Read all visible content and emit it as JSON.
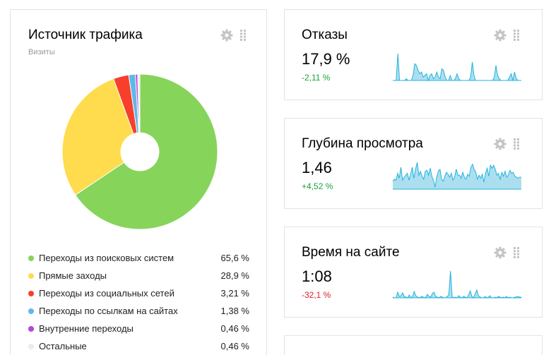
{
  "traffic": {
    "title": "Источник трафика",
    "subtitle": "Визиты",
    "chart_data": {
      "type": "pie",
      "categories": [
        "Переходы из поисковых систем",
        "Прямые заходы",
        "Переходы из социальных сетей",
        "Переходы по ссылкам на сайтах",
        "Внутренние переходы",
        "Остальные"
      ],
      "values": [
        65.6,
        28.9,
        3.21,
        1.38,
        0.46,
        0.46
      ],
      "colors": [
        "#86d45a",
        "#ffdc4d",
        "#f73f2b",
        "#5fb8e8",
        "#b545d4",
        "#ececec"
      ]
    },
    "legend": [
      {
        "label": "Переходы из поисковых систем",
        "value": "65,6 %",
        "color": "#86d45a"
      },
      {
        "label": "Прямые заходы",
        "value": "28,9 %",
        "color": "#ffdc4d"
      },
      {
        "label": "Переходы из социальных сетей",
        "value": "3,21 %",
        "color": "#f73f2b"
      },
      {
        "label": "Переходы по ссылкам на сайтах",
        "value": "1,38 %",
        "color": "#5fb8e8"
      },
      {
        "label": "Внутренние переходы",
        "value": "0,46 %",
        "color": "#b545d4"
      },
      {
        "label": "Остальные",
        "value": "0,46 %",
        "color": "#ececec"
      }
    ]
  },
  "metrics": [
    {
      "title": "Отказы",
      "value": "17,9 %",
      "delta": "-2,11 %",
      "delta_color": "#1aa33a",
      "spark": [
        0,
        0,
        0,
        16,
        0,
        0,
        0,
        0,
        1,
        0,
        0,
        0,
        3,
        10,
        9,
        6,
        4,
        5,
        2,
        3,
        4,
        0,
        3,
        4,
        1,
        2,
        5,
        2,
        1,
        7,
        6,
        2,
        0,
        0,
        3,
        0,
        0,
        1,
        4,
        1,
        0,
        0,
        0,
        0,
        0,
        0,
        2,
        11,
        3,
        0,
        0,
        0,
        0,
        0,
        0,
        0,
        0,
        0,
        0,
        0,
        2,
        9,
        3,
        1,
        0,
        0,
        0,
        0,
        0,
        2,
        4,
        0,
        5,
        1,
        0,
        0,
        0
      ]
    },
    {
      "title": "Глубина просмотра",
      "value": "1,46",
      "delta": "+4,52 %",
      "delta_color": "#1aa33a",
      "spark": [
        8,
        10,
        9,
        16,
        11,
        22,
        9,
        12,
        14,
        16,
        9,
        15,
        22,
        11,
        20,
        27,
        14,
        18,
        13,
        10,
        18,
        19,
        14,
        21,
        13,
        9,
        2,
        12,
        18,
        20,
        10,
        8,
        13,
        17,
        15,
        12,
        16,
        9,
        12,
        20,
        14,
        14,
        11,
        17,
        12,
        10,
        15,
        13,
        22,
        25,
        20,
        17,
        10,
        14,
        11,
        15,
        7,
        16,
        21,
        13,
        24,
        21,
        24,
        20,
        14,
        16,
        10,
        17,
        13,
        18,
        12,
        14,
        19,
        16,
        17,
        13,
        12,
        11,
        12,
        12
      ]
    },
    {
      "title": "Время на сайте",
      "value": "1:08",
      "delta": "-32,1 %",
      "delta_color": "#e02020",
      "spark": [
        1,
        0,
        0,
        8,
        2,
        3,
        7,
        2,
        1,
        0,
        4,
        0,
        2,
        9,
        3,
        1,
        0,
        1,
        2,
        0,
        1,
        5,
        2,
        1,
        6,
        8,
        2,
        1,
        0,
        2,
        1,
        0,
        0,
        2,
        4,
        38,
        2,
        0,
        1,
        0,
        3,
        1,
        0,
        2,
        1,
        0,
        4,
        10,
        2,
        0,
        6,
        11,
        3,
        1,
        0,
        0,
        2,
        0,
        1,
        3,
        0,
        0,
        1,
        0,
        2,
        1,
        0,
        1,
        0,
        2,
        0,
        1,
        0,
        0,
        1,
        1,
        2,
        1,
        1
      ]
    }
  ],
  "colors": {
    "spark_stroke": "#23b3dc",
    "spark_fill": "#abdff0",
    "icon": "#c4c4c4"
  }
}
